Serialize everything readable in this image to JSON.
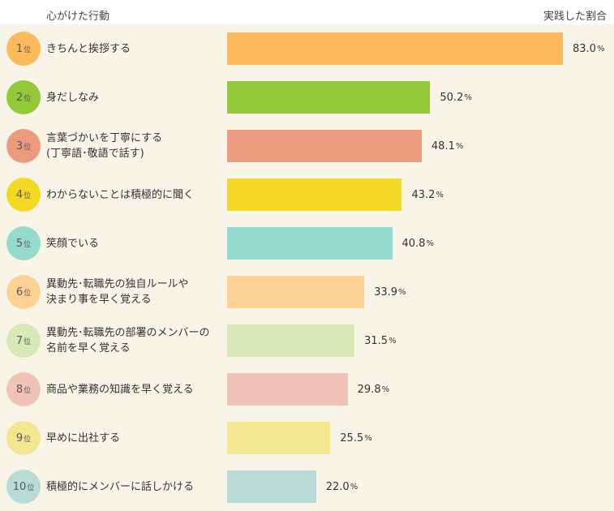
{
  "chart_data": {
    "type": "bar",
    "orientation": "horizontal",
    "header_left": "心がけた行動",
    "header_right": "実践した割合",
    "rank_suffix": "位",
    "unit": "%",
    "xlim": [
      0,
      100
    ],
    "items": [
      {
        "rank": "1",
        "label": "きちんと挨拶する",
        "value": 83.0,
        "value_label": "83.0",
        "color": "#fdb95a"
      },
      {
        "rank": "2",
        "label": "身だしなみ",
        "value": 50.2,
        "value_label": "50.2",
        "color": "#93c938"
      },
      {
        "rank": "3",
        "label": "言葉づかいを丁寧にする\n(丁寧語･敬語で話す)",
        "value": 48.1,
        "value_label": "48.1",
        "color": "#ec9a7e"
      },
      {
        "rank": "4",
        "label": "わからないことは積極的に聞く",
        "value": 43.2,
        "value_label": "43.2",
        "color": "#f3d925"
      },
      {
        "rank": "5",
        "label": "笑顔でいる",
        "value": 40.8,
        "value_label": "40.8",
        "color": "#94dbcd"
      },
      {
        "rank": "6",
        "label": "異動先･転職先の独自ルールや\n決まり事を早く覚える",
        "value": 33.9,
        "value_label": "33.9",
        "color": "#fdd194"
      },
      {
        "rank": "7",
        "label": "異動先･転職先の部署のメンバーの\n名前を早く覚える",
        "value": 31.5,
        "value_label": "31.5",
        "color": "#d8e8b6"
      },
      {
        "rank": "8",
        "label": "商品や業務の知識を早く覚える",
        "value": 29.8,
        "value_label": "29.8",
        "color": "#f1c3b6"
      },
      {
        "rank": "9",
        "label": "早めに出社する",
        "value": 25.5,
        "value_label": "25.5",
        "color": "#f4e690"
      },
      {
        "rank": "10",
        "label": "積極的にメンバーに話しかける",
        "value": 22.0,
        "value_label": "22.0",
        "color": "#b8dcd5"
      }
    ]
  }
}
